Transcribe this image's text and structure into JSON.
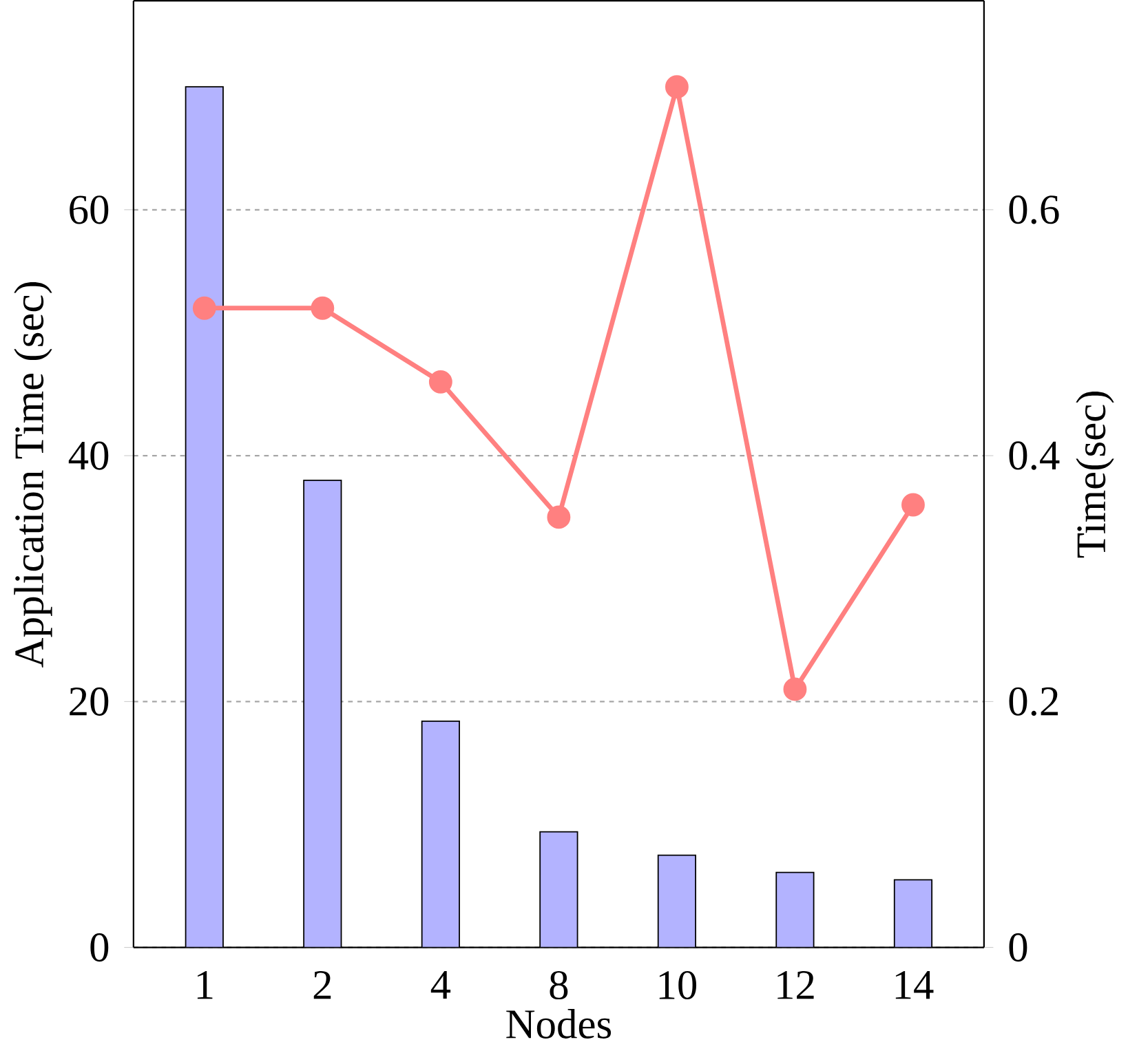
{
  "chart_data": {
    "type": "bar",
    "xlabel": "Nodes",
    "ylabel": "Application Time (sec)",
    "y2label": "Time(sec)",
    "categories": [
      "1",
      "2",
      "4",
      "8",
      "10",
      "12",
      "14"
    ],
    "series": [
      {
        "color": "#b3b3ff",
        "values": [
          70,
          38,
          18.4,
          9.4,
          7.5,
          6.1,
          5.5
        ]
      },
      {
        "type": "line",
        "axis": "y2",
        "color": "#ff8080",
        "marker": "circle",
        "values": [
          0.52,
          0.52,
          0.46,
          0.35,
          0.7,
          0.21,
          0.36
        ]
      }
    ],
    "ylim": [
      0,
      77
    ],
    "yticks": [
      0,
      20,
      40,
      60
    ],
    "y2lim": [
      0,
      0.77
    ],
    "y2ticks": [
      0,
      0.2,
      0.4,
      0.6
    ],
    "grid": "y"
  }
}
